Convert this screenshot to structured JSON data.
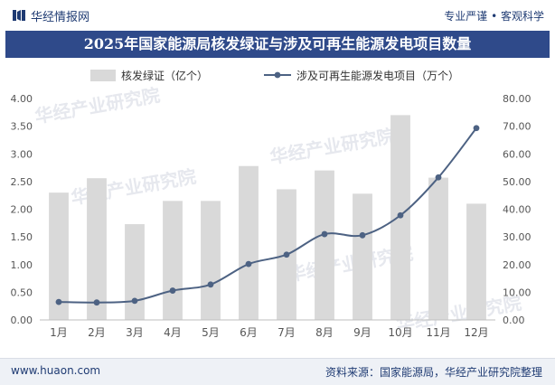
{
  "header": {
    "brand": "华经情报网",
    "slogan": "专业严谨 • 客观科学"
  },
  "title": "2025年国家能源局核发绿证与涉及可再生能源发电项目数量",
  "footer": {
    "site": "www.huaon.com",
    "source": "资料来源：国家能源局，华经产业研究院整理"
  },
  "watermark": "华经产业研究院",
  "colors": {
    "bar": "#d9d9d9",
    "line": "#4d6283",
    "title_bg": "#2f4a8a",
    "brand": "#1f3b73"
  },
  "chart_data": {
    "type": "bar",
    "categories": [
      "1月",
      "2月",
      "3月",
      "4月",
      "5月",
      "6月",
      "7月",
      "8月",
      "9月",
      "10月",
      "11月",
      "12月"
    ],
    "series": [
      {
        "name": "核发绿证（亿个）",
        "type": "bar",
        "axis": "left",
        "values": [
          2.3,
          2.56,
          1.73,
          2.15,
          2.15,
          2.78,
          2.36,
          2.7,
          2.28,
          3.7,
          2.57,
          2.1
        ]
      },
      {
        "name": "涉及可再生能源发电项目（万个）",
        "type": "line",
        "axis": "right",
        "values": [
          6.5,
          6.3,
          6.9,
          10.6,
          12.8,
          20.2,
          23.6,
          31.0,
          30.6,
          37.8,
          51.5,
          69.3
        ]
      }
    ],
    "y_left": {
      "ylim": [
        0,
        4
      ],
      "ticks": [
        "0.00",
        "0.50",
        "1.00",
        "1.50",
        "2.00",
        "2.50",
        "3.00",
        "3.50",
        "4.00"
      ]
    },
    "y_right": {
      "ylim": [
        0,
        80
      ],
      "ticks": [
        "0.00",
        "10.00",
        "20.00",
        "30.00",
        "40.00",
        "50.00",
        "60.00",
        "70.00",
        "80.00"
      ]
    },
    "grid": false,
    "legend": "top-center"
  }
}
